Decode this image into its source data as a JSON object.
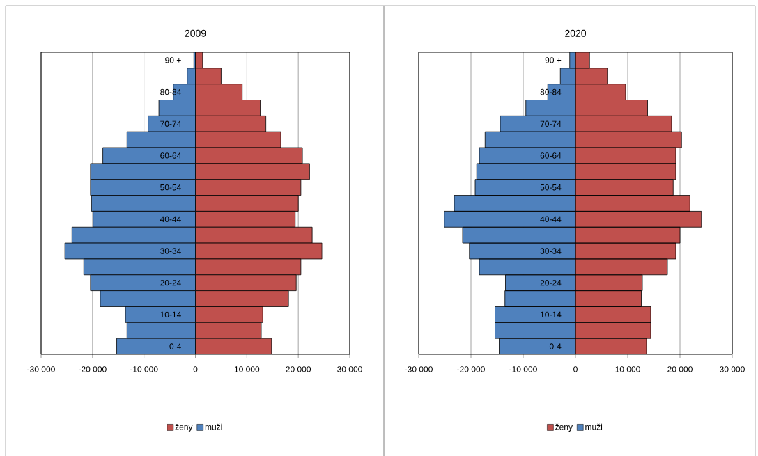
{
  "chart_data": [
    {
      "type": "bar",
      "orientation": "horizontal",
      "stacked": true,
      "title": "2009",
      "categories": [
        "90 +",
        null,
        "80-84",
        null,
        "70-74",
        null,
        "60-64",
        null,
        "50-54",
        null,
        "40-44",
        null,
        "30-34",
        null,
        "20-24",
        null,
        "10-14",
        null,
        "0-4"
      ],
      "series": [
        {
          "name": "ženy",
          "color": "#c0504d",
          "values": [
            1400,
            5000,
            9100,
            12600,
            13700,
            16600,
            20800,
            22200,
            20500,
            20000,
            19400,
            22700,
            24600,
            20500,
            19600,
            18100,
            13100,
            12800,
            14800
          ]
        },
        {
          "name": "muži",
          "color": "#4f81bd",
          "values": [
            -300,
            -1600,
            -4300,
            -7100,
            -9200,
            -13300,
            -18000,
            -20400,
            -20400,
            -20200,
            -19900,
            -24000,
            -25400,
            -21700,
            -20400,
            -18500,
            -13600,
            -13300,
            -15300
          ]
        }
      ],
      "xlim": [
        -30000,
        30000
      ],
      "xticks": [
        {
          "value": -30000,
          "label": "-30 000"
        },
        {
          "value": -20000,
          "label": "-20 000"
        },
        {
          "value": -10000,
          "label": "-10 000"
        },
        0,
        {
          "value": 10000,
          "label": "10 000"
        },
        {
          "value": 20000,
          "label": "20 000"
        },
        {
          "value": 30000,
          "label": "30 000"
        }
      ],
      "grid": "x",
      "legend": "bottom"
    },
    {
      "type": "bar",
      "orientation": "horizontal",
      "stacked": true,
      "title": "2020",
      "categories": [
        "90 +",
        null,
        "80-84",
        null,
        "70-74",
        null,
        "60-64",
        null,
        "50-54",
        null,
        "40-44",
        null,
        "30-34",
        null,
        "20-24",
        null,
        "10-14",
        null,
        "0-4"
      ],
      "series": [
        {
          "name": "ženy",
          "color": "#c0504d",
          "values": [
            2700,
            6100,
            9600,
            13800,
            18400,
            20300,
            19200,
            19200,
            18700,
            21900,
            24100,
            20000,
            19200,
            17600,
            12800,
            12600,
            14400,
            14400,
            13600
          ]
        },
        {
          "name": "muži",
          "color": "#4f81bd",
          "values": [
            -1100,
            -2900,
            -5300,
            -9500,
            -14400,
            -17300,
            -18400,
            -18900,
            -19200,
            -23200,
            -25100,
            -21600,
            -20300,
            -18400,
            -13400,
            -13500,
            -15400,
            -15400,
            -14600
          ]
        }
      ],
      "xlim": [
        -30000,
        30000
      ],
      "xticks": [
        {
          "value": -30000,
          "label": "-30 000"
        },
        {
          "value": -20000,
          "label": "-20 000"
        },
        {
          "value": -10000,
          "label": "-10 000"
        },
        0,
        {
          "value": 10000,
          "label": "10 000"
        },
        {
          "value": 20000,
          "label": "20 000"
        },
        {
          "value": 30000,
          "label": "30 000"
        }
      ],
      "grid": "x",
      "legend": "bottom"
    }
  ]
}
